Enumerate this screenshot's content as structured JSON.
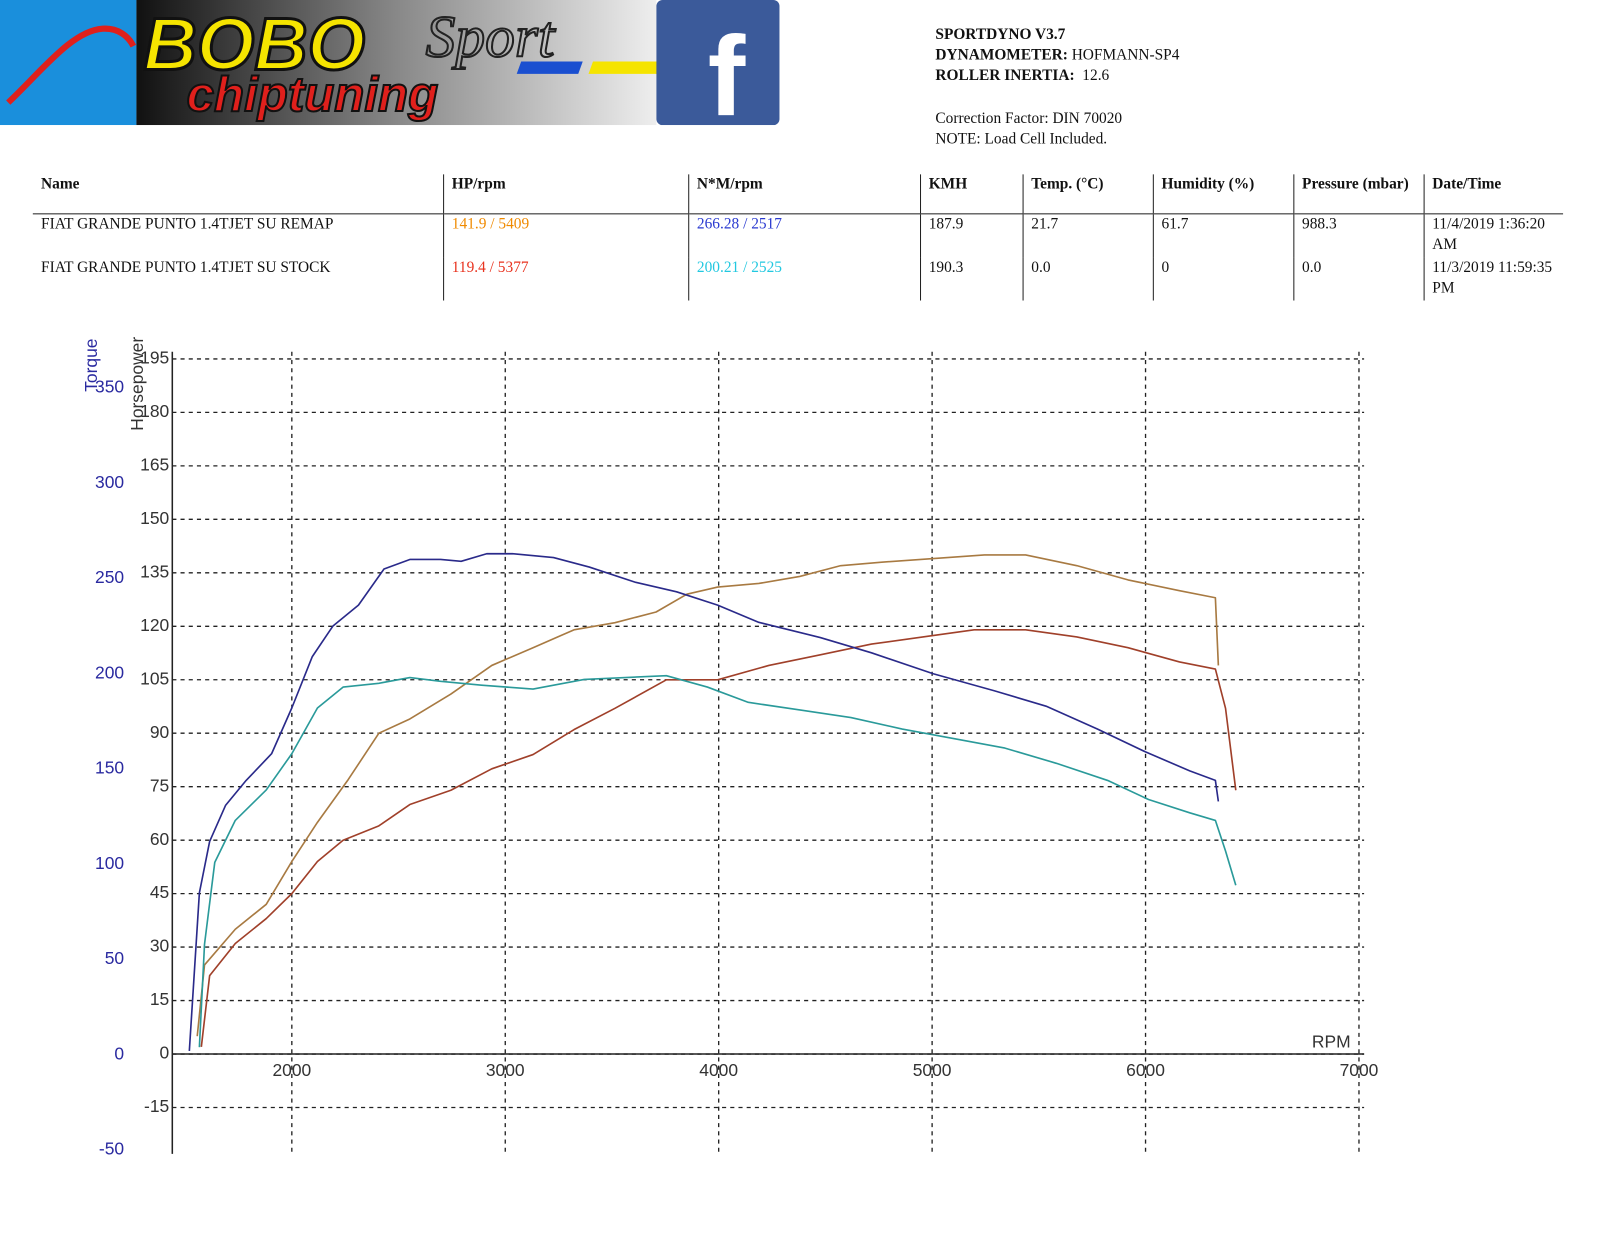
{
  "header": {
    "logo": {
      "brand": "BOBO",
      "script": "Sport",
      "tagline": "chiptuning",
      "social": "f"
    },
    "info": {
      "software": "SPORTDYNO V3.7",
      "dynamometer_label": "DYNAMOMETER:",
      "dynamometer": "HOFMANN-SP4",
      "inertia_label": "ROLLER INERTIA:",
      "inertia": "12.6",
      "correction": "Correction Factor: DIN 70020",
      "note": "NOTE: Load Cell Included."
    }
  },
  "table": {
    "header": [
      "Name",
      "HP/rpm",
      "N*M/rpm",
      "KMH",
      "Temp. (°C)",
      "Humidity (%)",
      "Pressure (mbar)",
      "Date/Time"
    ],
    "rows": [
      [
        "FIAT GRANDE PUNTO 1.4TJET SU REMAP",
        "141.9 / 5409",
        "266.28 / 2517",
        "187.9",
        "21.7",
        "61.7",
        "988.3",
        "11/4/2019 1:36:20 AM"
      ],
      [
        "FIAT GRANDE PUNTO 1.4TJET SU STOCK",
        "119.4 / 5377",
        "200.21 / 2525",
        "190.3",
        "0.0",
        "0",
        "0.0",
        "11/3/2019 11:59:35 PM"
      ]
    ]
  },
  "chart_data": {
    "type": "line",
    "xlabel": "RPM",
    "ylabel": "Horsepower",
    "y2label": "Torque",
    "xlim": [
      1440,
      7000
    ],
    "xticks": [
      2000,
      3000,
      4000,
      5000,
      6000,
      7000
    ],
    "ylim": [
      -28,
      197
    ],
    "yticks": [
      -15,
      0,
      15,
      30,
      45,
      60,
      75,
      90,
      105,
      120,
      135,
      150,
      165,
      180,
      195
    ],
    "y2lim": [
      -52,
      369
    ],
    "y2ticks": [
      -50,
      0,
      50,
      100,
      150,
      200,
      250,
      300,
      350
    ],
    "grid": true,
    "series": [
      {
        "color": "#a87a42",
        "x": [
          1557,
          1591,
          1735,
          1880,
          2000,
          2120,
          2264,
          2408,
          2553,
          2745,
          2937,
          3130,
          3322,
          3514,
          3707,
          3851,
          3995,
          4188,
          4380,
          4572,
          4764,
          5005,
          5245,
          5438,
          5678,
          5918,
          6159,
          6327,
          6341
        ],
        "values": [
          5,
          25,
          35,
          42,
          54,
          65,
          77,
          90,
          94,
          101,
          109,
          114,
          119,
          121,
          124,
          129,
          131,
          132,
          134,
          137,
          138,
          139,
          140,
          140,
          137,
          133,
          130,
          128,
          109
        ]
      },
      {
        "color": "#a0402a",
        "x": [
          1576,
          1615,
          1735,
          1880,
          2000,
          2120,
          2240,
          2408,
          2553,
          2745,
          2937,
          3130,
          3322,
          3514,
          3755,
          3995,
          4235,
          4476,
          4716,
          4957,
          5197,
          5438,
          5678,
          5918,
          6159,
          6327,
          6375,
          6423
        ],
        "values": [
          2,
          22,
          31,
          38,
          45,
          54,
          60,
          64,
          70,
          74,
          80,
          84,
          91,
          97,
          105,
          105,
          109,
          112,
          115,
          117,
          119,
          119,
          117,
          114,
          110,
          108,
          97,
          74
        ]
      },
      {
        "color": "#2a2a8a",
        "axis": "y2",
        "x": [
          1520,
          1567,
          1615,
          1690,
          1786,
          1905,
          2000,
          2096,
          2192,
          2312,
          2432,
          2553,
          2697,
          2793,
          2913,
          3034,
          3226,
          3394,
          3611,
          3803,
          3995,
          4188,
          4476,
          4716,
          5005,
          5293,
          5534,
          5774,
          6000,
          6207,
          6327,
          6341
        ],
        "values": [
          2,
          85,
          112,
          131,
          144,
          158,
          182,
          209,
          225,
          236,
          255,
          260,
          260,
          259,
          263,
          263,
          261,
          256,
          248,
          243,
          236,
          227,
          219,
          211,
          200,
          191,
          183,
          171,
          159,
          149,
          144,
          133
        ]
      },
      {
        "color": "#2a9a9a",
        "axis": "y2",
        "x": [
          1567,
          1591,
          1639,
          1735,
          1880,
          2000,
          2120,
          2240,
          2408,
          2553,
          2697,
          2889,
          3130,
          3370,
          3562,
          3755,
          3947,
          4139,
          4380,
          4620,
          4860,
          5101,
          5341,
          5582,
          5822,
          6014,
          6207,
          6327,
          6375,
          6423
        ],
        "values": [
          4,
          58,
          101,
          123,
          139,
          158,
          182,
          193,
          195,
          198,
          196,
          194,
          192,
          197,
          198,
          199,
          193,
          185,
          181,
          177,
          171,
          166,
          161,
          153,
          144,
          134,
          127,
          123,
          107,
          89
        ]
      }
    ]
  }
}
